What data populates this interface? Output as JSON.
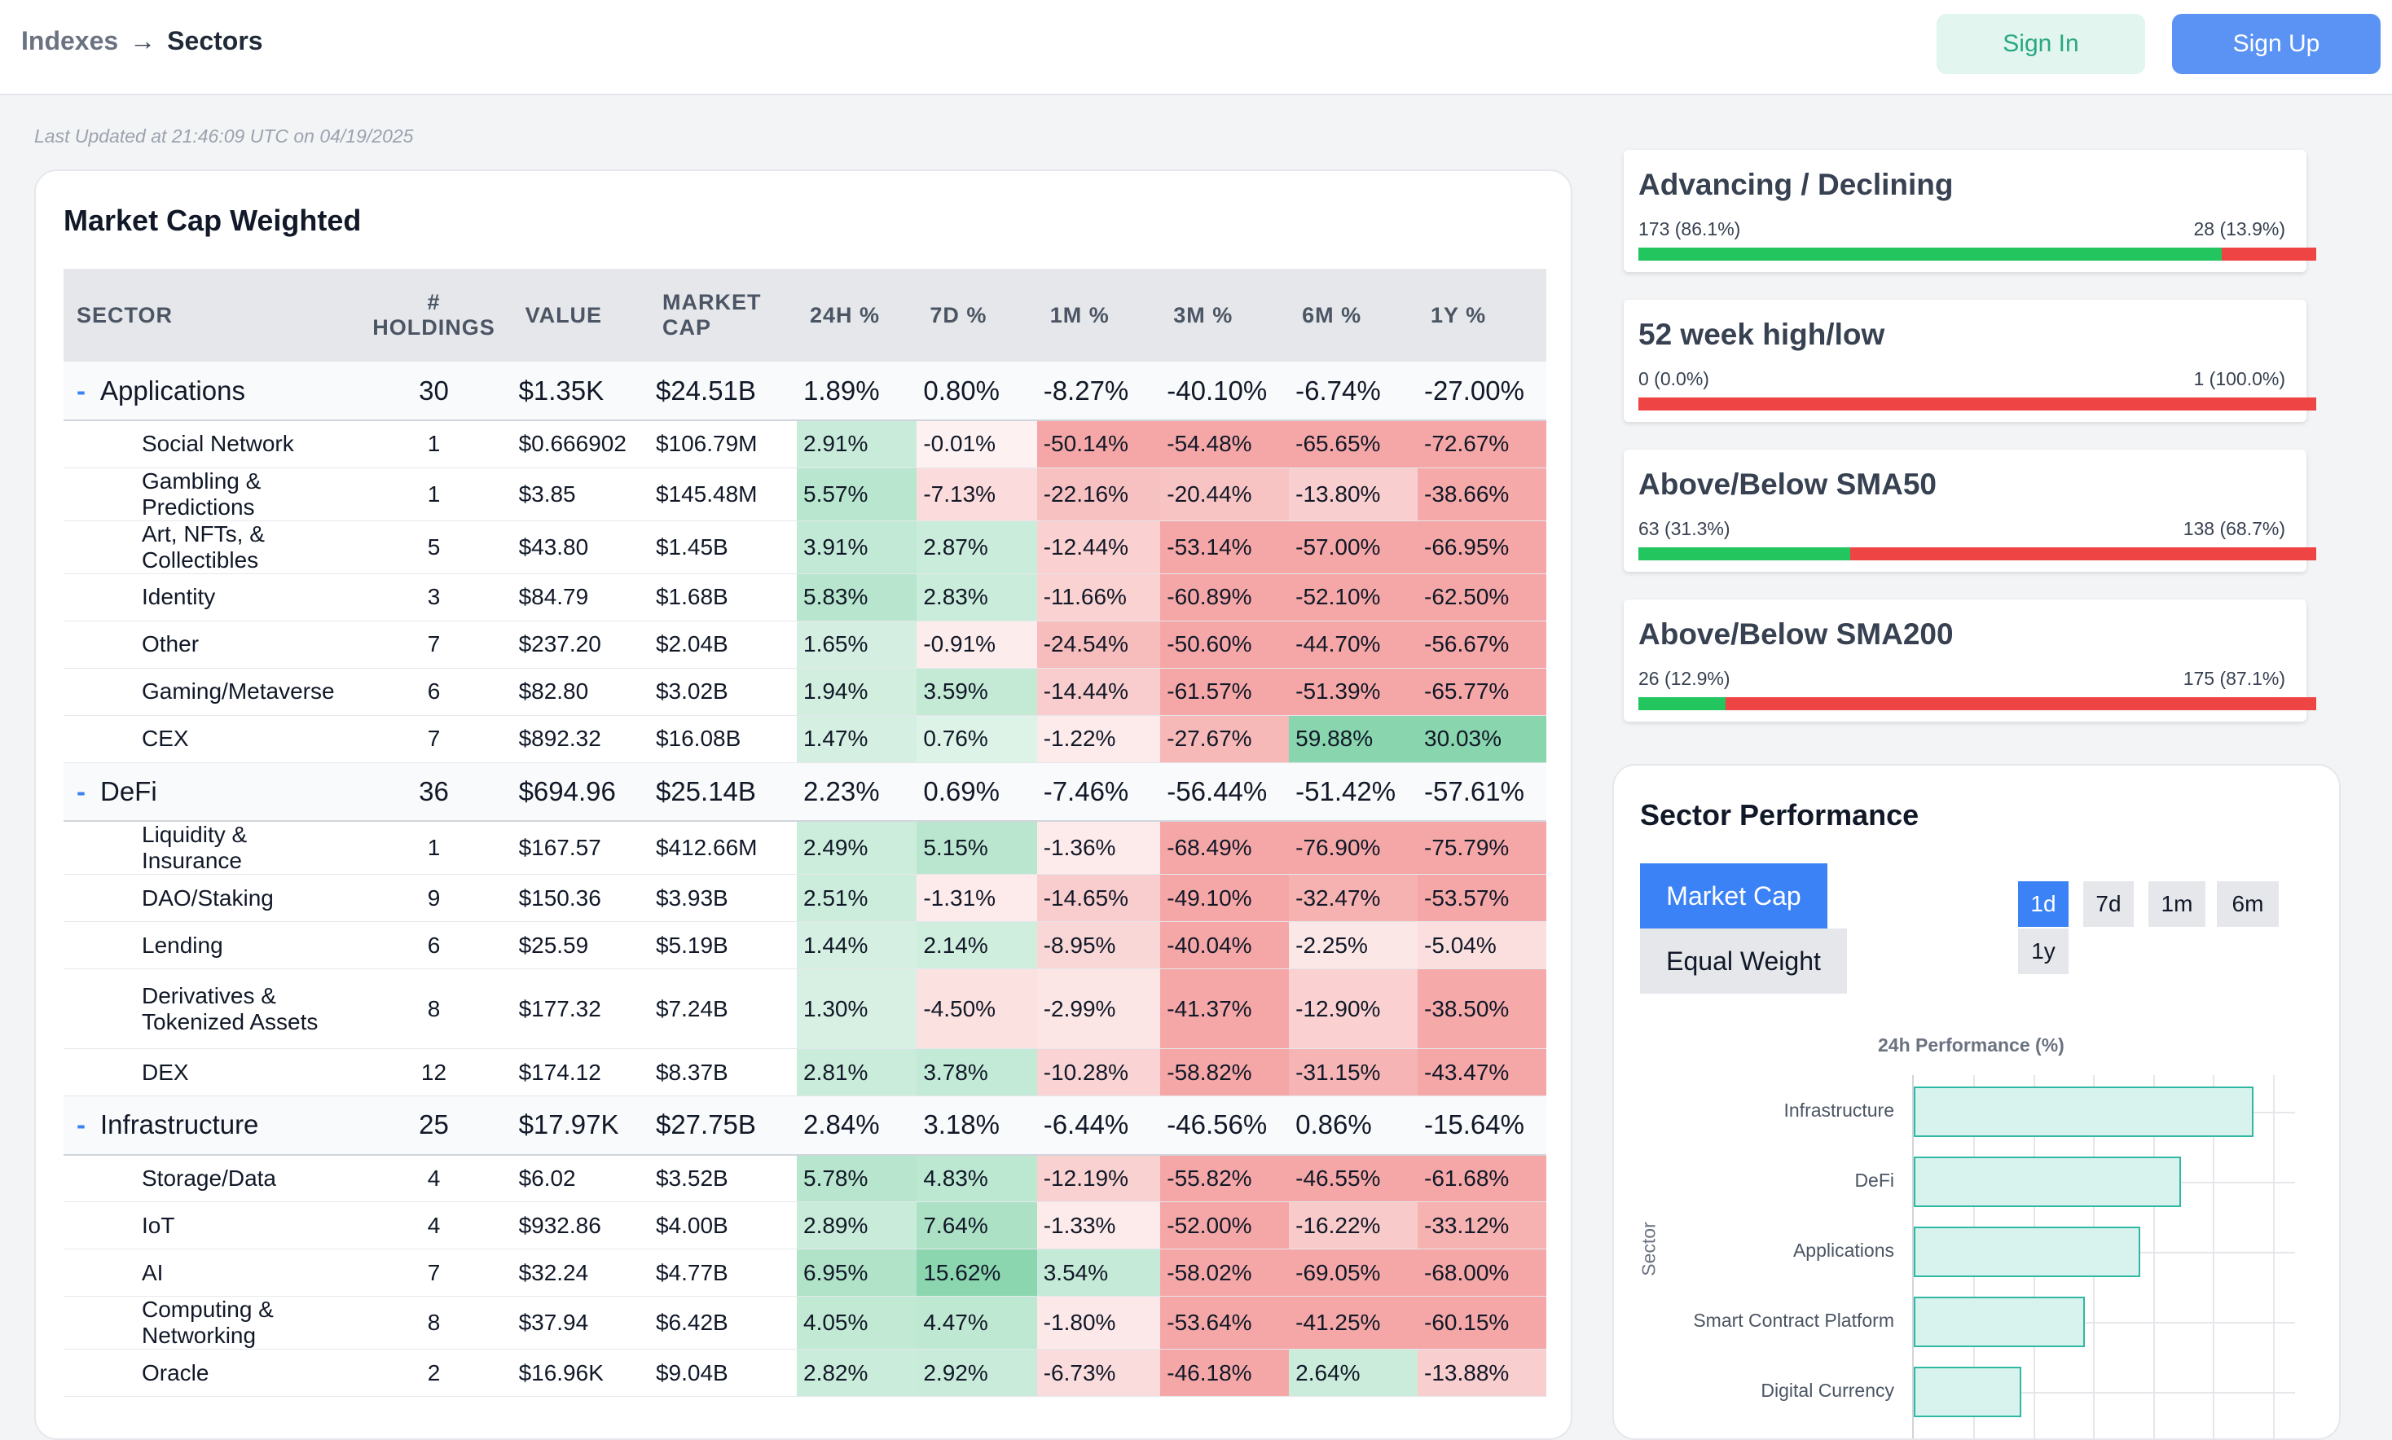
{
  "breadcrumb": {
    "root": "Indexes",
    "current": "Sectors"
  },
  "auth": {
    "sign_in": "Sign In",
    "sign_up": "Sign Up"
  },
  "last_updated": "Last Updated at 21:46:09 UTC on 04/19/2025",
  "table": {
    "title": "Market Cap Weighted",
    "headers": {
      "sector": "SECTOR",
      "holdings_1": "#",
      "holdings_2": "HOLDINGS",
      "value": "VALUE",
      "mcap_1": "MARKET",
      "mcap_2": "CAP",
      "h24": "24H %",
      "d7": "7D %",
      "m1": "1M %",
      "m3": "3M %",
      "m6": "6M %",
      "y1": "1Y %"
    },
    "groups": [
      {
        "minus": "-",
        "name": "Applications",
        "holdings": "30",
        "value": "$1.35K",
        "mcap": "$24.51B",
        "h24": "1.89%",
        "d7": "0.80%",
        "m1": "-8.27%",
        "m3": "-40.10%",
        "m6": "-6.74%",
        "y1": "-27.00%",
        "rows": [
          {
            "name": "Social Network",
            "holdings": "1",
            "value": "$0.666902",
            "mcap": "$106.79M",
            "h24": "2.91%",
            "d7": "-0.01%",
            "m1": "-50.14%",
            "m3": "-54.48%",
            "m6": "-65.65%",
            "y1": "-72.67%"
          },
          {
            "name": "Gambling & Predictions",
            "holdings": "1",
            "value": "$3.85",
            "mcap": "$145.48M",
            "h24": "5.57%",
            "d7": "-7.13%",
            "m1": "-22.16%",
            "m3": "-20.44%",
            "m6": "-13.80%",
            "y1": "-38.66%"
          },
          {
            "name": "Art, NFTs, & Collectibles",
            "holdings": "5",
            "value": "$43.80",
            "mcap": "$1.45B",
            "h24": "3.91%",
            "d7": "2.87%",
            "m1": "-12.44%",
            "m3": "-53.14%",
            "m6": "-57.00%",
            "y1": "-66.95%"
          },
          {
            "name": "Identity",
            "holdings": "3",
            "value": "$84.79",
            "mcap": "$1.68B",
            "h24": "5.83%",
            "d7": "2.83%",
            "m1": "-11.66%",
            "m3": "-60.89%",
            "m6": "-52.10%",
            "y1": "-62.50%"
          },
          {
            "name": "Other",
            "holdings": "7",
            "value": "$237.20",
            "mcap": "$2.04B",
            "h24": "1.65%",
            "d7": "-0.91%",
            "m1": "-24.54%",
            "m3": "-50.60%",
            "m6": "-44.70%",
            "y1": "-56.67%"
          },
          {
            "name": "Gaming/Metaverse",
            "holdings": "6",
            "value": "$82.80",
            "mcap": "$3.02B",
            "h24": "1.94%",
            "d7": "3.59%",
            "m1": "-14.44%",
            "m3": "-61.57%",
            "m6": "-51.39%",
            "y1": "-65.77%"
          },
          {
            "name": "CEX",
            "holdings": "7",
            "value": "$892.32",
            "mcap": "$16.08B",
            "h24": "1.47%",
            "d7": "0.76%",
            "m1": "-1.22%",
            "m3": "-27.67%",
            "m6": "59.88%",
            "y1": "30.03%"
          }
        ]
      },
      {
        "minus": "-",
        "name": "DeFi",
        "holdings": "36",
        "value": "$694.96",
        "mcap": "$25.14B",
        "h24": "2.23%",
        "d7": "0.69%",
        "m1": "-7.46%",
        "m3": "-56.44%",
        "m6": "-51.42%",
        "y1": "-57.61%",
        "rows": [
          {
            "name": "Liquidity & Insurance",
            "holdings": "1",
            "value": "$167.57",
            "mcap": "$412.66M",
            "h24": "2.49%",
            "d7": "5.15%",
            "m1": "-1.36%",
            "m3": "-68.49%",
            "m6": "-76.90%",
            "y1": "-75.79%"
          },
          {
            "name": "DAO/Staking",
            "holdings": "9",
            "value": "$150.36",
            "mcap": "$3.93B",
            "h24": "2.51%",
            "d7": "-1.31%",
            "m1": "-14.65%",
            "m3": "-49.10%",
            "m6": "-32.47%",
            "y1": "-53.57%"
          },
          {
            "name": "Lending",
            "holdings": "6",
            "value": "$25.59",
            "mcap": "$5.19B",
            "h24": "1.44%",
            "d7": "2.14%",
            "m1": "-8.95%",
            "m3": "-40.04%",
            "m6": "-2.25%",
            "y1": "-5.04%"
          },
          {
            "name": "Derivatives & Tokenized Assets",
            "holdings": "8",
            "value": "$177.32",
            "mcap": "$7.24B",
            "h24": "1.30%",
            "d7": "-4.50%",
            "m1": "-2.99%",
            "m3": "-41.37%",
            "m6": "-12.90%",
            "y1": "-38.50%"
          },
          {
            "name": "DEX",
            "holdings": "12",
            "value": "$174.12",
            "mcap": "$8.37B",
            "h24": "2.81%",
            "d7": "3.78%",
            "m1": "-10.28%",
            "m3": "-58.82%",
            "m6": "-31.15%",
            "y1": "-43.47%"
          }
        ]
      },
      {
        "minus": "-",
        "name": "Infrastructure",
        "holdings": "25",
        "value": "$17.97K",
        "mcap": "$27.75B",
        "h24": "2.84%",
        "d7": "3.18%",
        "m1": "-6.44%",
        "m3": "-46.56%",
        "m6": "0.86%",
        "y1": "-15.64%",
        "rows": [
          {
            "name": "Storage/Data",
            "holdings": "4",
            "value": "$6.02",
            "mcap": "$3.52B",
            "h24": "5.78%",
            "d7": "4.83%",
            "m1": "-12.19%",
            "m3": "-55.82%",
            "m6": "-46.55%",
            "y1": "-61.68%"
          },
          {
            "name": "IoT",
            "holdings": "4",
            "value": "$932.86",
            "mcap": "$4.00B",
            "h24": "2.89%",
            "d7": "7.64%",
            "m1": "-1.33%",
            "m3": "-52.00%",
            "m6": "-16.22%",
            "y1": "-33.12%"
          },
          {
            "name": "AI",
            "holdings": "7",
            "value": "$32.24",
            "mcap": "$4.77B",
            "h24": "6.95%",
            "d7": "15.62%",
            "m1": "3.54%",
            "m3": "-58.02%",
            "m6": "-69.05%",
            "y1": "-68.00%"
          },
          {
            "name": "Computing & Networking",
            "holdings": "8",
            "value": "$37.94",
            "mcap": "$6.42B",
            "h24": "4.05%",
            "d7": "4.47%",
            "m1": "-1.80%",
            "m3": "-53.64%",
            "m6": "-41.25%",
            "y1": "-60.15%"
          },
          {
            "name": "Oracle",
            "holdings": "2",
            "value": "$16.96K",
            "mcap": "$9.04B",
            "h24": "2.82%",
            "d7": "2.92%",
            "m1": "-6.73%",
            "m3": "-46.18%",
            "m6": "2.64%",
            "y1": "-13.88%"
          }
        ]
      }
    ]
  },
  "metrics": [
    {
      "title": "Advancing / Declining",
      "left": "173 (86.1%)",
      "right": "28 (13.9%)",
      "fraction": 0.861
    },
    {
      "title": "52 week high/low",
      "left": "0 (0.0%)",
      "right": "1 (100.0%)",
      "fraction": 0.0
    },
    {
      "title": "Above/Below SMA50",
      "left": "63 (31.3%)",
      "right": "138 (68.7%)",
      "fraction": 0.313
    },
    {
      "title": "Above/Below SMA200",
      "left": "26 (12.9%)",
      "right": "175 (87.1%)",
      "fraction": 0.129
    }
  ],
  "performance": {
    "title": "Sector Performance",
    "weighting": {
      "market_cap": "Market Cap",
      "equal_weight": "Equal Weight",
      "selected": "Market Cap"
    },
    "timeframes": [
      "1d",
      "7d",
      "1m",
      "6m",
      "1y"
    ],
    "selected_timeframe": "1d"
  },
  "chart_data": {
    "type": "bar",
    "orientation": "horizontal",
    "title": "24h Performance (%)",
    "ylabel": "Sector",
    "categories": [
      "Infrastructure",
      "DeFi",
      "Applications",
      "Smart Contract Platform",
      "Digital Currency"
    ],
    "values": [
      2.84,
      2.23,
      1.89,
      1.43,
      0.9
    ],
    "xlim": [
      0,
      3.2
    ],
    "grid": true
  },
  "colors": {
    "accent": "#3b82f6",
    "green": "#22c55e",
    "red": "#ef4444",
    "bar_fill": "#d8f3ee",
    "bar_stroke": "#2fb8a2"
  }
}
